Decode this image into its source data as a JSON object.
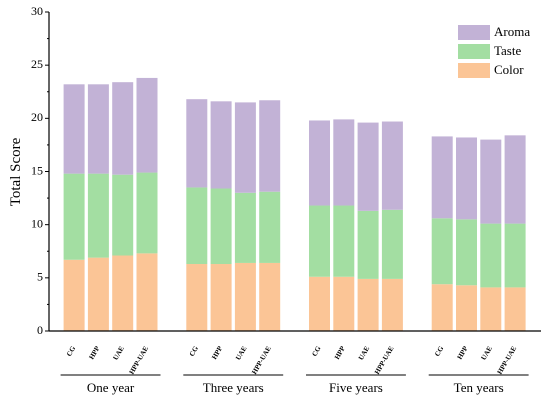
{
  "chart_data": {
    "type": "bar",
    "stacked": true,
    "title": "",
    "ylabel": "Total Score",
    "xlabel": "",
    "ylim": [
      0,
      30
    ],
    "yticks": [
      0,
      5,
      10,
      15,
      20,
      25,
      30
    ],
    "grid": false,
    "legend_position": "top-right",
    "legend_order": [
      "Aroma",
      "Taste",
      "Color"
    ],
    "treatments": [
      "CG",
      "HPP",
      "UAE",
      "HPP-UAE"
    ],
    "groups": [
      {
        "label": "One year",
        "stack_values": {
          "Color": [
            6.7,
            6.9,
            7.1,
            7.3
          ],
          "Taste": [
            8.1,
            7.9,
            7.6,
            7.6
          ],
          "Aroma": [
            8.4,
            8.4,
            8.7,
            8.9
          ]
        }
      },
      {
        "label": "Three years",
        "stack_values": {
          "Color": [
            6.3,
            6.3,
            6.4,
            6.4
          ],
          "Taste": [
            7.2,
            7.1,
            6.6,
            6.7
          ],
          "Aroma": [
            8.3,
            8.2,
            8.5,
            8.6
          ]
        }
      },
      {
        "label": "Five years",
        "stack_values": {
          "Color": [
            5.1,
            5.1,
            4.9,
            4.9
          ],
          "Taste": [
            6.7,
            6.7,
            6.4,
            6.5
          ],
          "Aroma": [
            8.0,
            8.1,
            8.3,
            8.3
          ]
        }
      },
      {
        "label": "Ten years",
        "stack_values": {
          "Color": [
            4.4,
            4.3,
            4.1,
            4.1
          ],
          "Taste": [
            6.2,
            6.2,
            6.0,
            6.0
          ],
          "Aroma": [
            7.7,
            7.7,
            7.9,
            8.3
          ]
        }
      }
    ],
    "series": [
      {
        "name": "Color",
        "color": "#FBC596"
      },
      {
        "name": "Taste",
        "color": "#A3DEA2"
      },
      {
        "name": "Aroma",
        "color": "#C2B2D6"
      }
    ]
  }
}
